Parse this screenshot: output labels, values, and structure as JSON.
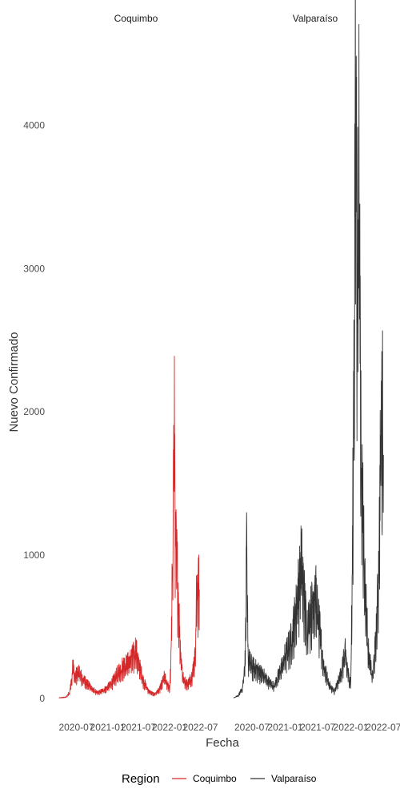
{
  "chart_data": {
    "type": "line",
    "xlabel": "Fecha",
    "ylabel": "Nuevo Confirmado",
    "y_ticks": [
      0,
      1000,
      2000,
      3000,
      4000
    ],
    "x_tick_labels": [
      "2020-07",
      "2021-01",
      "2021-07",
      "2022-01",
      "2022-07"
    ],
    "x_tick_dates": [
      "2020-07-01",
      "2021-01-01",
      "2021-07-01",
      "2022-01-01",
      "2022-07-01"
    ],
    "x_range": [
      "2020-03-03",
      "2022-10-01"
    ],
    "y_range": [
      -100,
      4650
    ],
    "grid": false,
    "legend": {
      "title": "Region",
      "position": "bottom",
      "items": [
        {
          "name": "Coquimbo",
          "color": "#d62728"
        },
        {
          "name": "Valparaíso",
          "color": "#333333"
        }
      ]
    },
    "panels": [
      {
        "strip_label": "Coquimbo",
        "series_name": "Coquimbo",
        "color": "#d62728",
        "keypoints": [
          [
            "2020-03-20",
            5
          ],
          [
            "2020-05-01",
            10
          ],
          [
            "2020-05-20",
            40
          ],
          [
            "2020-06-05",
            140
          ],
          [
            "2020-06-12",
            260
          ],
          [
            "2020-06-20",
            130
          ],
          [
            "2020-07-01",
            170
          ],
          [
            "2020-07-15",
            190
          ],
          [
            "2020-08-01",
            150
          ],
          [
            "2020-09-01",
            110
          ],
          [
            "2020-10-01",
            70
          ],
          [
            "2020-11-01",
            40
          ],
          [
            "2020-12-01",
            55
          ],
          [
            "2021-01-01",
            80
          ],
          [
            "2021-02-01",
            120
          ],
          [
            "2021-03-01",
            180
          ],
          [
            "2021-04-01",
            230
          ],
          [
            "2021-05-01",
            250
          ],
          [
            "2021-06-01",
            300
          ],
          [
            "2021-06-15",
            350
          ],
          [
            "2021-07-01",
            250
          ],
          [
            "2021-08-01",
            120
          ],
          [
            "2021-09-01",
            50
          ],
          [
            "2021-10-01",
            30
          ],
          [
            "2021-11-01",
            60
          ],
          [
            "2021-12-01",
            150
          ],
          [
            "2021-12-20",
            100
          ],
          [
            "2022-01-01",
            60
          ],
          [
            "2022-01-10",
            300
          ],
          [
            "2022-01-20",
            1200
          ],
          [
            "2022-01-28",
            1970
          ],
          [
            "2022-02-05",
            1100
          ],
          [
            "2022-02-15",
            900
          ],
          [
            "2022-02-25",
            600
          ],
          [
            "2022-03-05",
            350
          ],
          [
            "2022-03-20",
            150
          ],
          [
            "2022-04-15",
            100
          ],
          [
            "2022-05-10",
            150
          ],
          [
            "2022-06-01",
            300
          ],
          [
            "2022-06-10",
            810
          ],
          [
            "2022-06-25",
            760
          ]
        ]
      },
      {
        "strip_label": "Valparaíso",
        "series_name": "Valparaíso",
        "color": "#333333",
        "keypoints": [
          [
            "2020-03-20",
            5
          ],
          [
            "2020-04-15",
            20
          ],
          [
            "2020-05-10",
            80
          ],
          [
            "2020-05-25",
            300
          ],
          [
            "2020-06-01",
            1000
          ],
          [
            "2020-06-10",
            280
          ],
          [
            "2020-07-01",
            230
          ],
          [
            "2020-08-01",
            200
          ],
          [
            "2020-09-01",
            170
          ],
          [
            "2020-10-01",
            120
          ],
          [
            "2020-11-01",
            90
          ],
          [
            "2020-12-01",
            180
          ],
          [
            "2021-01-01",
            300
          ],
          [
            "2021-02-01",
            400
          ],
          [
            "2021-03-01",
            600
          ],
          [
            "2021-04-01",
            970
          ],
          [
            "2021-05-01",
            500
          ],
          [
            "2021-06-01",
            650
          ],
          [
            "2021-06-15",
            780
          ],
          [
            "2021-07-01",
            600
          ],
          [
            "2021-08-01",
            250
          ],
          [
            "2021-09-01",
            100
          ],
          [
            "2021-10-01",
            50
          ],
          [
            "2021-11-01",
            150
          ],
          [
            "2021-12-01",
            320
          ],
          [
            "2021-12-20",
            150
          ],
          [
            "2022-01-01",
            120
          ],
          [
            "2022-01-10",
            1000
          ],
          [
            "2022-01-20",
            2700
          ],
          [
            "2022-01-28",
            4500
          ],
          [
            "2022-02-05",
            3000
          ],
          [
            "2022-02-15",
            3700
          ],
          [
            "2022-02-25",
            2000
          ],
          [
            "2022-03-05",
            1500
          ],
          [
            "2022-03-20",
            800
          ],
          [
            "2022-04-10",
            300
          ],
          [
            "2022-05-01",
            150
          ],
          [
            "2022-05-20",
            400
          ],
          [
            "2022-06-05",
            900
          ],
          [
            "2022-06-15",
            1800
          ],
          [
            "2022-06-25",
            2050
          ],
          [
            "2022-07-01",
            1700
          ]
        ]
      }
    ]
  }
}
